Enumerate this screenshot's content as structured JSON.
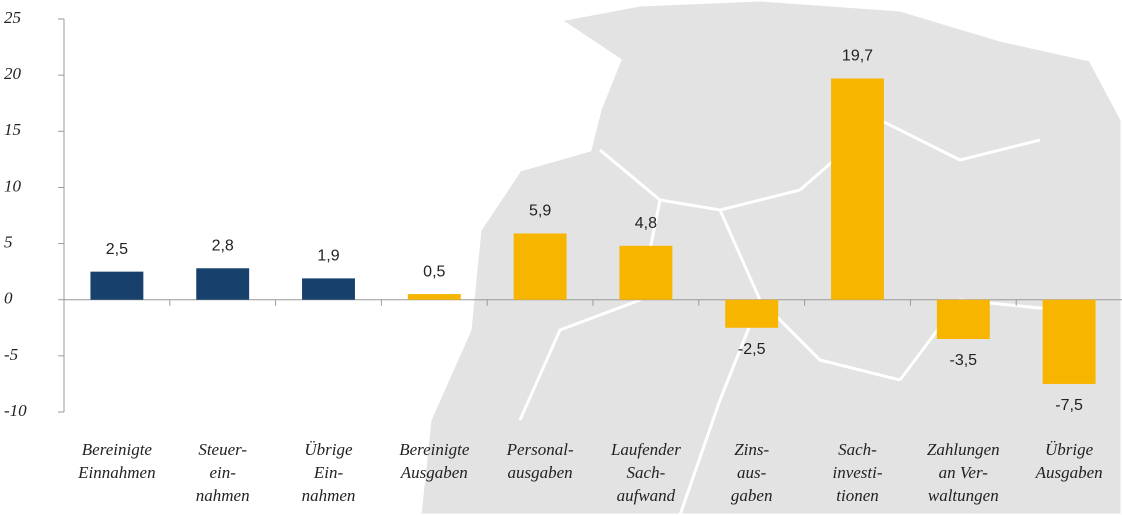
{
  "chart_data": {
    "type": "bar",
    "categories": [
      [
        "Bereinigte",
        "Einnahmen"
      ],
      [
        "Steuer-",
        "ein-",
        "nahmen"
      ],
      [
        "Übrige",
        "Ein-",
        "nahmen"
      ],
      [
        "Bereinigte",
        "Ausgaben"
      ],
      [
        "Personal-",
        "ausgaben"
      ],
      [
        "Laufender",
        "Sach-",
        "aufwand"
      ],
      [
        "Zins-",
        "aus-",
        "gaben"
      ],
      [
        "Sach-",
        "investi-",
        "tionen"
      ],
      [
        "Zahlungen",
        "an Ver-",
        "waltungen"
      ],
      [
        "Übrige",
        "Ausgaben"
      ]
    ],
    "values": [
      2.5,
      2.8,
      1.9,
      0.5,
      5.9,
      4.8,
      -2.5,
      19.7,
      -3.5,
      -7.5
    ],
    "value_labels": [
      "2,5",
      "2,8",
      "1,9",
      "0,5",
      "5,9",
      "4,8",
      "-2,5",
      "19,7",
      "-3,5",
      "-7,5"
    ],
    "colors": [
      "#17406d",
      "#17406d",
      "#17406d",
      "#f8b500",
      "#f8b500",
      "#f8b500",
      "#f8b500",
      "#f8b500",
      "#f8b500",
      "#f8b500"
    ],
    "ylim": [
      -10,
      25
    ],
    "yticks": [
      -10,
      -5,
      0,
      5,
      10,
      15,
      20,
      25
    ],
    "grid": false
  }
}
